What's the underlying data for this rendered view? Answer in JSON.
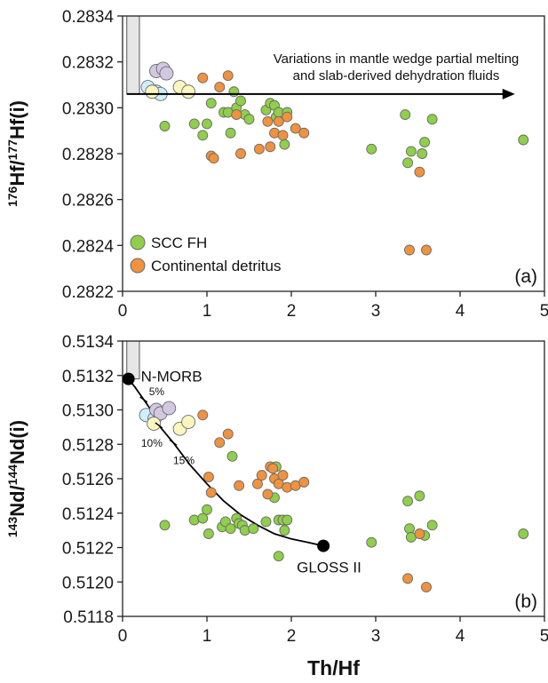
{
  "colors": {
    "scc": "#8fcf4a",
    "continental": "#f0923e",
    "mantle_cyan": "#cfeffb",
    "mantle_purple": "#d2c8e2",
    "mantle_yellow": "#fbf6c0",
    "point_edge": "#6b6b6b",
    "shade": "#e6e6e6",
    "curve": "#000000"
  },
  "xlabel": "Th/Hf",
  "chart_data": [
    {
      "type": "scatter",
      "panel": "(a)",
      "xlim": [
        0,
        5
      ],
      "ylim": [
        0.2822,
        0.2834
      ],
      "x_ticks": [
        "0",
        "1",
        "2",
        "3",
        "4",
        "5"
      ],
      "y_ticks": [
        "0.2822",
        "0.2824",
        "0.2826",
        "0.2828",
        "0.2830",
        "0.2832",
        "0.2834"
      ],
      "ylabel_parts": [
        "176",
        "Hf/",
        "177",
        "Hf(i)"
      ],
      "legend": {
        "placement": "bottom-left",
        "entries": [
          {
            "label": "SCC FH",
            "series": "scc"
          },
          {
            "label": "Continental detritus",
            "series": "continental"
          }
        ]
      },
      "annotation": {
        "lines": [
          "Variations in mantle wedge partial melting",
          "and slab-derived dehydration fluids"
        ],
        "arrow": {
          "x0": 0.05,
          "x1": 4.65,
          "y": 0.28306
        }
      },
      "shaded_region": {
        "x": [
          0.05,
          0.2
        ],
        "y": [
          0.28306,
          0.2834
        ]
      },
      "series": [
        {
          "key": "scc",
          "points": [
            [
              0.5,
              0.28292
            ],
            [
              0.85,
              0.28293
            ],
            [
              0.95,
              0.28288
            ],
            [
              1.0,
              0.28293
            ],
            [
              1.05,
              0.28302
            ],
            [
              1.2,
              0.28298
            ],
            [
              1.25,
              0.28298
            ],
            [
              1.28,
              0.28289
            ],
            [
              1.32,
              0.28307
            ],
            [
              1.35,
              0.283
            ],
            [
              1.4,
              0.28303
            ],
            [
              1.45,
              0.28297
            ],
            [
              1.5,
              0.28295
            ],
            [
              1.7,
              0.28299
            ],
            [
              1.75,
              0.28302
            ],
            [
              1.8,
              0.28301
            ],
            [
              1.82,
              0.28296
            ],
            [
              1.85,
              0.28298
            ],
            [
              1.92,
              0.28284
            ],
            [
              1.95,
              0.28298
            ],
            [
              2.95,
              0.28282
            ],
            [
              3.35,
              0.28297
            ],
            [
              3.38,
              0.28276
            ],
            [
              3.42,
              0.28281
            ],
            [
              3.55,
              0.2828
            ],
            [
              3.58,
              0.28285
            ],
            [
              3.67,
              0.28295
            ],
            [
              4.75,
              0.28286
            ]
          ]
        },
        {
          "key": "continental",
          "points": [
            [
              0.95,
              0.28313
            ],
            [
              1.05,
              0.28279
            ],
            [
              1.08,
              0.28278
            ],
            [
              1.15,
              0.28309
            ],
            [
              1.25,
              0.28314
            ],
            [
              1.35,
              0.28297
            ],
            [
              1.4,
              0.2828
            ],
            [
              1.62,
              0.28282
            ],
            [
              1.72,
              0.28294
            ],
            [
              1.75,
              0.28283
            ],
            [
              1.8,
              0.28289
            ],
            [
              1.85,
              0.28294
            ],
            [
              1.9,
              0.28288
            ],
            [
              1.95,
              0.28296
            ],
            [
              2.05,
              0.28291
            ],
            [
              2.15,
              0.28289
            ],
            [
              3.4,
              0.28238
            ],
            [
              3.52,
              0.28272
            ],
            [
              3.6,
              0.28238
            ]
          ]
        },
        {
          "key": "mantle_cyan",
          "points": [
            [
              0.3,
              0.28309
            ],
            [
              0.4,
              0.28307
            ],
            [
              0.45,
              0.28306
            ]
          ]
        },
        {
          "key": "mantle_purple",
          "points": [
            [
              0.4,
              0.28316
            ],
            [
              0.48,
              0.28317
            ],
            [
              0.52,
              0.28315
            ]
          ]
        },
        {
          "key": "mantle_yellow",
          "points": [
            [
              0.35,
              0.28307
            ],
            [
              0.68,
              0.28309
            ],
            [
              0.78,
              0.28307
            ]
          ]
        }
      ]
    },
    {
      "type": "scatter",
      "panel": "(b)",
      "xlim": [
        0,
        5
      ],
      "ylim": [
        0.5118,
        0.5134
      ],
      "x_ticks": [
        "0",
        "1",
        "2",
        "3",
        "4",
        "5"
      ],
      "y_ticks": [
        "0.5118",
        "0.5120",
        "0.5122",
        "0.5124",
        "0.5126",
        "0.5128",
        "0.5130",
        "0.5132",
        "0.5134"
      ],
      "ylabel_parts": [
        "143",
        "Nd/",
        "144",
        "Nd(i)"
      ],
      "shaded_region": {
        "x": [
          0.05,
          0.2
        ],
        "y": [
          0.51318,
          0.5134
        ]
      },
      "endmembers": [
        {
          "label": "N-MORB",
          "x": 0.07,
          "y": 0.51318
        },
        {
          "label": "GLOSS II",
          "x": 2.38,
          "y": 0.51221
        }
      ],
      "mixing_ticks": [
        {
          "label": "5%",
          "x": 0.25,
          "y": 0.51306
        },
        {
          "label": "10%",
          "x": 0.43,
          "y": 0.51291
        },
        {
          "label": "15%",
          "x": 0.6,
          "y": 0.51281
        }
      ],
      "mixing_curve": [
        [
          0.07,
          0.51318
        ],
        [
          0.15,
          0.51313
        ],
        [
          0.25,
          0.51306
        ],
        [
          0.35,
          0.51299
        ],
        [
          0.43,
          0.51291
        ],
        [
          0.6,
          0.51281
        ],
        [
          0.8,
          0.51268
        ],
        [
          1.0,
          0.51257
        ],
        [
          1.2,
          0.51247
        ],
        [
          1.4,
          0.51239
        ],
        [
          1.6,
          0.51233
        ],
        [
          1.8,
          0.51228
        ],
        [
          2.0,
          0.51225
        ],
        [
          2.2,
          0.51223
        ],
        [
          2.38,
          0.51221
        ]
      ],
      "series": [
        {
          "key": "scc",
          "points": [
            [
              0.5,
              0.51233
            ],
            [
              0.85,
              0.51236
            ],
            [
              0.95,
              0.51237
            ],
            [
              1.0,
              0.51242
            ],
            [
              1.02,
              0.51228
            ],
            [
              1.18,
              0.51232
            ],
            [
              1.22,
              0.51235
            ],
            [
              1.28,
              0.51231
            ],
            [
              1.3,
              0.51273
            ],
            [
              1.35,
              0.51237
            ],
            [
              1.38,
              0.51234
            ],
            [
              1.42,
              0.51233
            ],
            [
              1.45,
              0.5123
            ],
            [
              1.55,
              0.51231
            ],
            [
              1.7,
              0.51235
            ],
            [
              1.8,
              0.51249
            ],
            [
              1.82,
              0.51267
            ],
            [
              1.85,
              0.51236
            ],
            [
              1.9,
              0.51236
            ],
            [
              1.92,
              0.5123
            ],
            [
              1.95,
              0.51236
            ],
            [
              1.85,
              0.51215
            ],
            [
              2.95,
              0.51223
            ],
            [
              3.38,
              0.51247
            ],
            [
              3.4,
              0.51231
            ],
            [
              3.42,
              0.51226
            ],
            [
              3.52,
              0.5125
            ],
            [
              3.58,
              0.51227
            ],
            [
              3.67,
              0.51233
            ],
            [
              4.75,
              0.51228
            ]
          ]
        },
        {
          "key": "continental",
          "points": [
            [
              0.95,
              0.51297
            ],
            [
              1.02,
              0.51261
            ],
            [
              1.05,
              0.51252
            ],
            [
              1.15,
              0.51281
            ],
            [
              1.25,
              0.51286
            ],
            [
              1.38,
              0.51256
            ],
            [
              1.6,
              0.51257
            ],
            [
              1.65,
              0.51262
            ],
            [
              1.72,
              0.51251
            ],
            [
              1.75,
              0.51267
            ],
            [
              1.78,
              0.51266
            ],
            [
              1.8,
              0.5126
            ],
            [
              1.85,
              0.51257
            ],
            [
              1.9,
              0.51262
            ],
            [
              1.95,
              0.51255
            ],
            [
              2.05,
              0.51256
            ],
            [
              2.15,
              0.51258
            ],
            [
              3.38,
              0.51202
            ],
            [
              3.52,
              0.51228
            ],
            [
              3.6,
              0.51197
            ]
          ]
        },
        {
          "key": "mantle_cyan",
          "points": [
            [
              0.28,
              0.51297
            ],
            [
              0.38,
              0.51295
            ]
          ]
        },
        {
          "key": "mantle_purple",
          "points": [
            [
              0.4,
              0.513
            ],
            [
              0.45,
              0.51298
            ],
            [
              0.55,
              0.51301
            ]
          ]
        },
        {
          "key": "mantle_yellow",
          "points": [
            [
              0.37,
              0.51292
            ],
            [
              0.68,
              0.51289
            ],
            [
              0.78,
              0.51293
            ]
          ]
        }
      ]
    }
  ]
}
